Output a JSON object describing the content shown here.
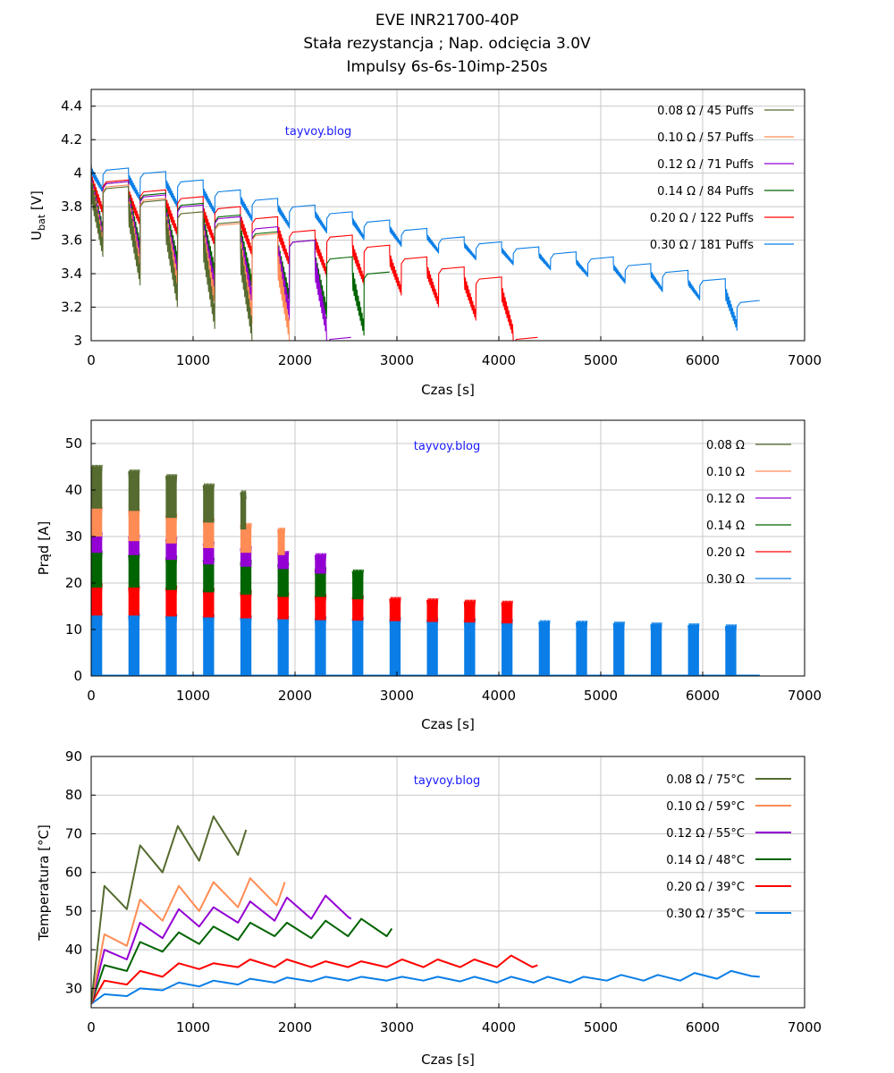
{
  "chart_data": [
    {
      "type": "line",
      "title_lines": [
        "EVE INR21700-40P",
        "Stała rezystancja ; Nap. odcięcia 3.0V",
        "Impulsy 6s-6s-10imp-250s"
      ],
      "watermark": "tayvoy.blog",
      "xlabel": "Czas [s]",
      "ylabel_main": "U",
      "ylabel_sub": "bat",
      "ylabel_unit": " [V]",
      "xlim": [
        0,
        7000
      ],
      "ylim": [
        3.0,
        4.5
      ],
      "xticks": [
        "0",
        "1000",
        "2000",
        "3000",
        "4000",
        "5000",
        "6000",
        "7000"
      ],
      "yticks": [
        "3",
        "3.2",
        "3.4",
        "3.6",
        "3.8",
        "4",
        "4.2",
        "4.4"
      ],
      "series": [
        {
          "name": "0.08 Ω  /  45 Puffs",
          "color": "#556b2f",
          "n_pulses": 5,
          "end": 1520,
          "rest": [
            4.04,
            3.92,
            3.84,
            3.77,
            3.71
          ],
          "pulse_top": [
            3.98,
            3.86,
            3.77,
            3.68,
            3.6
          ],
          "pulse_bottom": [
            3.5,
            3.33,
            3.2,
            3.07,
            3.0
          ]
        },
        {
          "name": "0.10 Ω  /  57 Puffs",
          "color": "#ff8c55",
          "n_pulses": 6,
          "end": 1900,
          "rest": [
            4.04,
            3.93,
            3.85,
            3.77,
            3.7,
            3.64
          ],
          "pulse_top": [
            3.98,
            3.87,
            3.78,
            3.7,
            3.63,
            3.55
          ],
          "pulse_bottom": [
            3.54,
            3.4,
            3.3,
            3.2,
            3.1,
            3.0
          ]
        },
        {
          "name": "0.12 Ω  /  71 Puffs",
          "color": "#9400d3",
          "n_pulses": 7,
          "end": 2550,
          "rest": [
            4.05,
            3.95,
            3.87,
            3.81,
            3.74,
            3.68,
            3.6
          ],
          "pulse_top": [
            3.99,
            3.89,
            3.8,
            3.73,
            3.66,
            3.6,
            3.52
          ],
          "pulse_bottom": [
            3.58,
            3.46,
            3.37,
            3.29,
            3.21,
            3.12,
            3.02
          ]
        },
        {
          "name": "0.14 Ω  /  84 Puffs",
          "color": "#006400",
          "n_pulses": 8,
          "end": 2950,
          "rest": [
            4.05,
            3.95,
            3.88,
            3.82,
            3.75,
            3.65,
            3.6,
            3.5,
            3.41
          ],
          "pulse_top": [
            3.99,
            3.9,
            3.82,
            3.76,
            3.69,
            3.6,
            3.53,
            3.44
          ],
          "pulse_bottom": [
            3.62,
            3.52,
            3.44,
            3.37,
            3.3,
            3.22,
            3.13,
            3.03
          ]
        },
        {
          "name": "0.20 Ω  /  122 Puffs",
          "color": "#ff0000",
          "n_pulses": 12,
          "end": 4380,
          "rest": [
            4.05,
            3.96,
            3.9,
            3.86,
            3.8,
            3.74,
            3.66,
            3.63,
            3.57,
            3.5,
            3.44,
            3.38
          ],
          "pulse_top": [
            4.0,
            3.91,
            3.86,
            3.81,
            3.76,
            3.7,
            3.63,
            3.59,
            3.53,
            3.46,
            3.4,
            3.34
          ],
          "pulse_bottom": [
            3.75,
            3.68,
            3.62,
            3.56,
            3.5,
            3.44,
            3.38,
            3.33,
            3.27,
            3.2,
            3.12,
            3.02
          ]
        },
        {
          "name": "0.30 Ω  /  181 Puffs",
          "color": "#0a7ee6",
          "n_pulses": 18,
          "end": 6560,
          "rest": [
            4.06,
            4.03,
            4.01,
            3.96,
            3.9,
            3.85,
            3.81,
            3.77,
            3.72,
            3.67,
            3.62,
            3.59,
            3.56,
            3.53,
            3.5,
            3.46,
            3.42,
            3.37,
            3.24
          ],
          "pulse_top": [
            4.04,
            4.0,
            3.97,
            3.92,
            3.87,
            3.82,
            3.78,
            3.74,
            3.69,
            3.64,
            3.59,
            3.56,
            3.53,
            3.49,
            3.46,
            3.42,
            3.37,
            3.33
          ],
          "pulse_bottom": [
            3.88,
            3.83,
            3.79,
            3.75,
            3.71,
            3.67,
            3.64,
            3.6,
            3.56,
            3.52,
            3.48,
            3.45,
            3.42,
            3.38,
            3.34,
            3.29,
            3.24,
            3.06
          ]
        }
      ]
    },
    {
      "type": "bar",
      "watermark": "tayvoy.blog",
      "xlabel": "Czas [s]",
      "ylabel": "Prąd [A]",
      "xlim": [
        0,
        7000
      ],
      "ylim": [
        0,
        55
      ],
      "xticks": [
        "0",
        "1000",
        "2000",
        "3000",
        "4000",
        "5000",
        "6000",
        "7000"
      ],
      "yticks": [
        "0",
        "10",
        "20",
        "30",
        "40",
        "50"
      ],
      "series": [
        {
          "name": "0.08 Ω",
          "color": "#556b2f",
          "n_pulses": 5,
          "end": 1520,
          "current_top": [
            45,
            44,
            43,
            41,
            39.5
          ],
          "current_bottom": [
            36,
            35.5,
            34,
            33,
            31.5
          ]
        },
        {
          "name": "0.10 Ω",
          "color": "#ff8c55",
          "n_pulses": 6,
          "end": 1900,
          "current_top": [
            36,
            35.5,
            34.5,
            33.5,
            32.5,
            31.5
          ],
          "current_bottom": [
            30,
            29,
            28.5,
            27.5,
            26.5,
            26
          ]
        },
        {
          "name": "0.12 Ω",
          "color": "#9400d3",
          "n_pulses": 7,
          "end": 2550,
          "current_top": [
            30.5,
            30,
            29.5,
            28.5,
            27.5,
            26.5,
            26
          ],
          "current_bottom": [
            26.5,
            26,
            25,
            24,
            23.5,
            23,
            22
          ]
        },
        {
          "name": "0.14 Ω",
          "color": "#006400",
          "n_pulses": 8,
          "end": 2950,
          "current_top": [
            26.5,
            26,
            25.5,
            25,
            24.5,
            24,
            23,
            22.5
          ],
          "current_bottom": [
            19,
            19,
            18.5,
            18,
            17.5,
            17,
            17,
            16.5
          ]
        },
        {
          "name": "0.20 Ω",
          "color": "#ff0000",
          "n_pulses": 12,
          "end": 4380,
          "current_top": [
            19.5,
            19,
            19,
            18.5,
            18,
            17.5,
            17.2,
            16.9,
            16.6,
            16.3,
            16,
            15.8
          ],
          "current_bottom": [
            13,
            13,
            12.8,
            12.6,
            12.4,
            12.2,
            12,
            11.9,
            11.8,
            11.6,
            11.5,
            11.3
          ]
        },
        {
          "name": "0.30 Ω",
          "color": "#0a7ee6",
          "n_pulses": 18,
          "end": 6560,
          "current_top": [
            13.2,
            13,
            12.9,
            12.8,
            12.6,
            12.5,
            12.4,
            12.3,
            12.2,
            12.1,
            12,
            11.8,
            11.6,
            11.5,
            11.3,
            11.1,
            10.9,
            10.7
          ],
          "current_bottom": [
            0,
            0,
            0,
            0,
            0,
            0,
            0,
            0,
            0,
            0,
            0,
            0,
            0,
            0,
            0,
            0,
            0,
            0
          ]
        }
      ]
    },
    {
      "type": "line",
      "watermark": "tayvoy.blog",
      "xlabel": "Czas [s]",
      "ylabel": "Temperatura [°C]",
      "xlim": [
        0,
        7000
      ],
      "ylim": [
        25,
        90
      ],
      "xticks": [
        "0",
        "1000",
        "2000",
        "3000",
        "4000",
        "5000",
        "6000",
        "7000"
      ],
      "yticks": [
        "30",
        "40",
        "50",
        "60",
        "70",
        "80",
        "90"
      ],
      "series": [
        {
          "name": "0.08 Ω  / 75°C",
          "color": "#556b2f",
          "points": [
            [
              0,
              26
            ],
            [
              130,
              56.5
            ],
            [
              350,
              50.5
            ],
            [
              480,
              67
            ],
            [
              700,
              60
            ],
            [
              850,
              72
            ],
            [
              1060,
              63
            ],
            [
              1200,
              74.5
            ],
            [
              1440,
              64.5
            ],
            [
              1520,
              71
            ]
          ]
        },
        {
          "name": "0.10 Ω  / 59°C",
          "color": "#ff8c55",
          "points": [
            [
              0,
              26
            ],
            [
              130,
              44
            ],
            [
              350,
              41
            ],
            [
              480,
              53
            ],
            [
              700,
              47.5
            ],
            [
              860,
              56.5
            ],
            [
              1060,
              50
            ],
            [
              1200,
              57.5
            ],
            [
              1440,
              51
            ],
            [
              1560,
              58.5
            ],
            [
              1820,
              51.5
            ],
            [
              1900,
              57.5
            ]
          ]
        },
        {
          "name": "0.12 Ω  / 55°C",
          "color": "#9400d3",
          "points": [
            [
              0,
              26
            ],
            [
              130,
              40
            ],
            [
              350,
              37.5
            ],
            [
              480,
              47
            ],
            [
              700,
              43
            ],
            [
              860,
              50.5
            ],
            [
              1060,
              46
            ],
            [
              1200,
              51
            ],
            [
              1440,
              47
            ],
            [
              1560,
              52.5
            ],
            [
              1800,
              47.5
            ],
            [
              1920,
              53.5
            ],
            [
              2160,
              48
            ],
            [
              2300,
              54
            ],
            [
              2520,
              48.5
            ],
            [
              2550,
              48
            ]
          ]
        },
        {
          "name": "0.14 Ω  / 48°C",
          "color": "#006400",
          "points": [
            [
              0,
              26
            ],
            [
              130,
              36
            ],
            [
              350,
              34.5
            ],
            [
              480,
              42
            ],
            [
              700,
              39.5
            ],
            [
              860,
              44.5
            ],
            [
              1060,
              41.5
            ],
            [
              1200,
              46
            ],
            [
              1440,
              42.5
            ],
            [
              1560,
              47
            ],
            [
              1800,
              43.5
            ],
            [
              1920,
              47
            ],
            [
              2160,
              43
            ],
            [
              2300,
              47.5
            ],
            [
              2520,
              43.5
            ],
            [
              2650,
              48
            ],
            [
              2900,
              43.5
            ],
            [
              2950,
              45.5
            ]
          ]
        },
        {
          "name": "0.20 Ω  / 39°C",
          "color": "#ff0000",
          "points": [
            [
              0,
              26
            ],
            [
              130,
              32
            ],
            [
              350,
              31
            ],
            [
              480,
              34.5
            ],
            [
              700,
              33
            ],
            [
              860,
              36.5
            ],
            [
              1060,
              35
            ],
            [
              1200,
              36.5
            ],
            [
              1440,
              35.5
            ],
            [
              1560,
              37.5
            ],
            [
              1800,
              35.5
            ],
            [
              1920,
              37.5
            ],
            [
              2160,
              35.5
            ],
            [
              2300,
              37
            ],
            [
              2520,
              35.5
            ],
            [
              2650,
              37
            ],
            [
              2900,
              35.5
            ],
            [
              3050,
              37.5
            ],
            [
              3260,
              35.5
            ],
            [
              3400,
              37.5
            ],
            [
              3620,
              35.5
            ],
            [
              3760,
              37.5
            ],
            [
              3980,
              35.5
            ],
            [
              4120,
              38.5
            ],
            [
              4330,
              35.5
            ],
            [
              4380,
              36
            ]
          ]
        },
        {
          "name": "0.30 Ω  / 35°C",
          "color": "#0a7ee6",
          "points": [
            [
              0,
              26
            ],
            [
              130,
              28.5
            ],
            [
              350,
              28
            ],
            [
              480,
              30
            ],
            [
              700,
              29.5
            ],
            [
              860,
              31.5
            ],
            [
              1060,
              30.5
            ],
            [
              1200,
              32
            ],
            [
              1440,
              31
            ],
            [
              1560,
              32.5
            ],
            [
              1800,
              31.5
            ],
            [
              1920,
              32.8
            ],
            [
              2160,
              31.8
            ],
            [
              2300,
              33
            ],
            [
              2520,
              32
            ],
            [
              2650,
              33
            ],
            [
              2900,
              32
            ],
            [
              3050,
              33
            ],
            [
              3260,
              32
            ],
            [
              3400,
              33
            ],
            [
              3620,
              31.8
            ],
            [
              3760,
              33
            ],
            [
              3980,
              31.5
            ],
            [
              4120,
              33
            ],
            [
              4340,
              31.5
            ],
            [
              4480,
              33
            ],
            [
              4700,
              31.5
            ],
            [
              4830,
              33
            ],
            [
              5060,
              32
            ],
            [
              5200,
              33.5
            ],
            [
              5420,
              32
            ],
            [
              5560,
              33.5
            ],
            [
              5780,
              32
            ],
            [
              5920,
              34
            ],
            [
              6140,
              32.5
            ],
            [
              6280,
              34.5
            ],
            [
              6480,
              33.2
            ],
            [
              6560,
              33
            ]
          ]
        }
      ]
    }
  ]
}
